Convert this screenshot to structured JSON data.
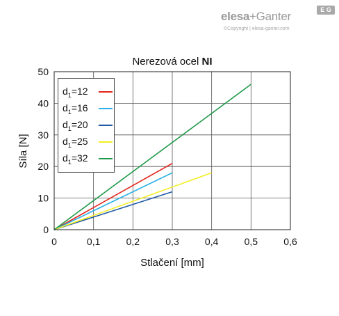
{
  "brand": {
    "name_bold": "elesa",
    "name_rest": "+Ganter",
    "mark": "E G",
    "copyright": "©Copyright | elesa-ganter.com"
  },
  "chart_data": {
    "type": "line",
    "title_prefix": "Nerezová ocel ",
    "title_bold": "NI",
    "xlabel": "Stlačení [mm]",
    "ylabel": "Síla [N]",
    "xlim": [
      0,
      0.6
    ],
    "ylim": [
      0,
      50
    ],
    "x_ticks": [
      "0",
      "0,1",
      "0,2",
      "0,3",
      "0,4",
      "0,5",
      "0,6"
    ],
    "y_ticks": [
      "0",
      "10",
      "20",
      "30",
      "40",
      "50"
    ],
    "grid": true,
    "legend_position": "top-left",
    "series": [
      {
        "name": "12",
        "color": "#e2231a",
        "points": [
          [
            0,
            0
          ],
          [
            0.3,
            21
          ]
        ]
      },
      {
        "name": "16",
        "color": "#2ab0e4",
        "points": [
          [
            0,
            0
          ],
          [
            0.3,
            18
          ]
        ]
      },
      {
        "name": "20",
        "color": "#1f5aa6",
        "points": [
          [
            0,
            0
          ],
          [
            0.3,
            12
          ]
        ]
      },
      {
        "name": "25",
        "color": "#f4ee21",
        "points": [
          [
            0,
            0
          ],
          [
            0.4,
            18
          ]
        ]
      },
      {
        "name": "32",
        "color": "#1f9a4a",
        "points": [
          [
            0,
            0
          ],
          [
            0.5,
            46
          ]
        ]
      }
    ],
    "legend_prefix": "d",
    "legend_sub": "1",
    "legend_eq": "="
  }
}
